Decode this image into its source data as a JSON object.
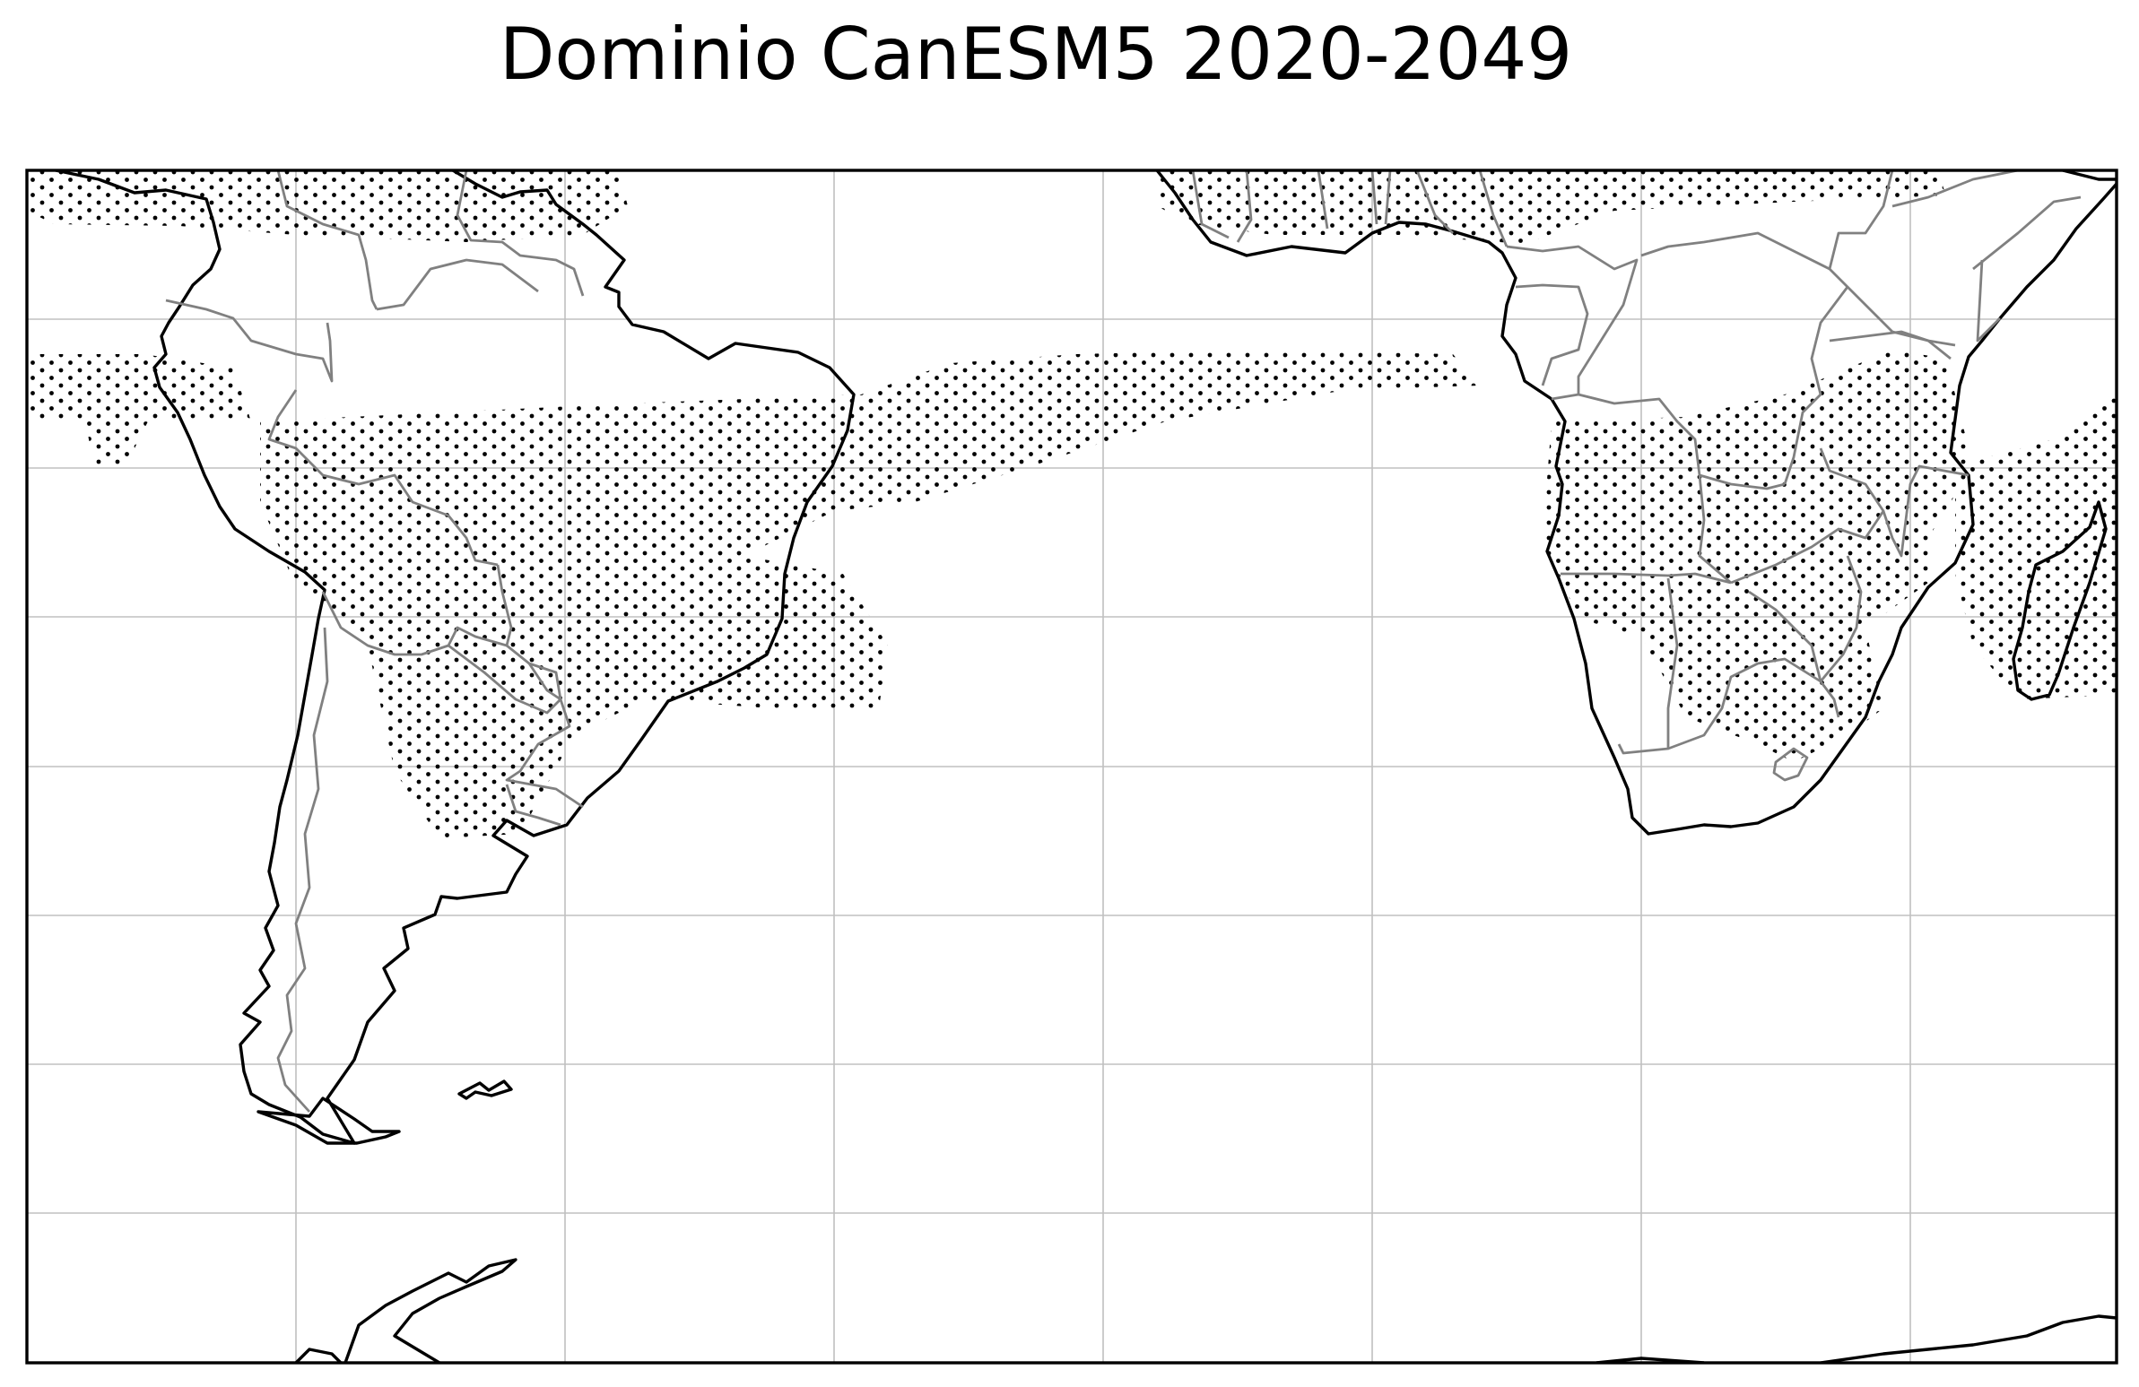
{
  "title": "Dominio CanESM5 2020-2049",
  "map": {
    "projection": "PlateCarree",
    "lon_range": [
      -90,
      60
    ],
    "lat_range": [
      15,
      -70
    ],
    "gridline_step_deg": 10,
    "colors": {
      "frame": "#000000",
      "coastline": "#000000",
      "borders": "#808080",
      "gridlines": "#c0c0c0",
      "stipple": "#000000"
    },
    "stippling_regions": [
      "northern-south-america-caribbean",
      "ecuador-peru-coast",
      "central-south-america-south-atlantic",
      "tropical-atlantic",
      "west-africa-coast",
      "southern-africa",
      "madagascar-indian-ocean"
    ]
  }
}
